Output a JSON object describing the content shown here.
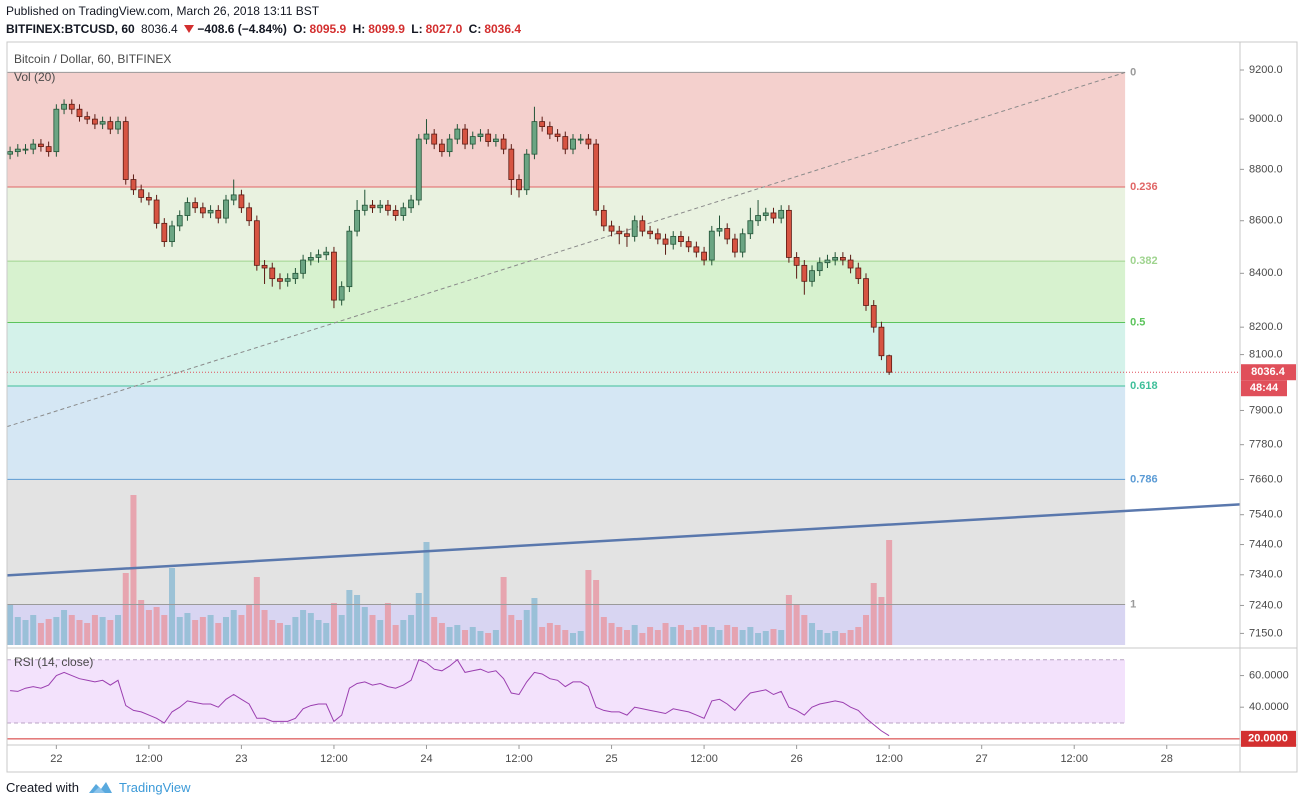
{
  "header": {
    "published": "Published on TradingView.com, March 26, 2018 13:11 BST",
    "symbol": "BITFINEX:BTCUSD, 60",
    "last": "8036.4",
    "change": "−408.6 (−4.84%)",
    "ohlc": [
      {
        "label": "O:",
        "value": "8095.9"
      },
      {
        "label": "H:",
        "value": "8099.9"
      },
      {
        "label": "L:",
        "value": "8027.0"
      },
      {
        "label": "C:",
        "value": "8036.4"
      }
    ]
  },
  "chart_data": {
    "type": "candlestick",
    "title": "Bitcoin / Dollar, 60, BITFINEX",
    "log_scale": true,
    "ylim": [
      7113,
      9316
    ],
    "yticks": [
      {
        "value": 9200,
        "label": "9200.0"
      },
      {
        "value": 9000,
        "label": "9000.0"
      },
      {
        "value": 8800,
        "label": "8800.0"
      },
      {
        "value": 8600,
        "label": "8600.0"
      },
      {
        "value": 8400,
        "label": "8400.0"
      },
      {
        "value": 8200,
        "label": "8200.0"
      },
      {
        "value": 8100,
        "label": "8100.0"
      },
      {
        "value": 7900,
        "label": "7900.0"
      },
      {
        "value": 7780,
        "label": "7780.0"
      },
      {
        "value": 7660,
        "label": "7660.0"
      },
      {
        "value": 7540,
        "label": "7540.0"
      },
      {
        "value": 7440,
        "label": "7440.0"
      },
      {
        "value": 7340,
        "label": "7340.0"
      },
      {
        "value": 7240,
        "label": "7240.0"
      },
      {
        "value": 7150,
        "label": "7150.0"
      }
    ],
    "xlim": [
      -0.4,
      159.5
    ],
    "xticks": [
      {
        "value": 6,
        "label": "22"
      },
      {
        "value": 18,
        "label": "12:00"
      },
      {
        "value": 30,
        "label": "23"
      },
      {
        "value": 42,
        "label": "12:00"
      },
      {
        "value": 54,
        "label": "24"
      },
      {
        "value": 66,
        "label": "12:00"
      },
      {
        "value": 78,
        "label": "25"
      },
      {
        "value": 90,
        "label": "12:00"
      },
      {
        "value": 102,
        "label": "26"
      },
      {
        "value": 114,
        "label": "12:00"
      },
      {
        "value": 126,
        "label": "27"
      },
      {
        "value": 138,
        "label": "12:00"
      },
      {
        "value": 150,
        "label": "28"
      }
    ],
    "up_color": "#6ba583",
    "up_border": "#225437",
    "down_color": "#d75442",
    "down_border": "#5b1a13",
    "open": [
      8860,
      8870,
      8880,
      8880,
      8900,
      8890,
      8870,
      9040,
      9060,
      9040,
      9010,
      9000,
      8980,
      8990,
      8960,
      8990,
      8760,
      8720,
      8690,
      8680,
      8590,
      8520,
      8580,
      8620,
      8670,
      8650,
      8630,
      8640,
      8610,
      8680,
      8700,
      8650,
      8600,
      8430,
      8420,
      8380,
      8370,
      8380,
      8400,
      8450,
      8460,
      8470,
      8480,
      8300,
      8350,
      8560,
      8640,
      8660,
      8650,
      8660,
      8640,
      8620,
      8650,
      8680,
      8920,
      8940,
      8900,
      8870,
      8920,
      8960,
      8900,
      8930,
      8940,
      8910,
      8920,
      8880,
      8760,
      8720,
      8860,
      8990,
      8970,
      8940,
      8930,
      8880,
      8920,
      8920,
      8900,
      8640,
      8580,
      8560,
      8550,
      8540,
      8600,
      8560,
      8550,
      8530,
      8510,
      8540,
      8520,
      8500,
      8480,
      8450,
      8560,
      8570,
      8530,
      8480,
      8550,
      8600,
      8620,
      8630,
      8610,
      8640,
      8460,
      8430,
      8370,
      8410,
      8440,
      8450,
      8460,
      8450,
      8420,
      8380,
      8280,
      8200,
      8095.9
    ],
    "high": [
      8890,
      8900,
      8900,
      8920,
      8920,
      8910,
      9060,
      9080,
      9080,
      9060,
      9030,
      9020,
      9010,
      9010,
      9010,
      9010,
      8780,
      8740,
      8710,
      8700,
      8610,
      8600,
      8640,
      8690,
      8690,
      8670,
      8660,
      8660,
      8700,
      8760,
      8720,
      8670,
      8620,
      8450,
      8440,
      8400,
      8400,
      8420,
      8470,
      8480,
      8490,
      8500,
      8500,
      8370,
      8580,
      8680,
      8720,
      8680,
      8680,
      8680,
      8660,
      8670,
      8700,
      8940,
      9000,
      8960,
      8920,
      8940,
      8980,
      8980,
      8950,
      8960,
      8960,
      8940,
      8940,
      8900,
      8780,
      8880,
      9050,
      9010,
      8990,
      8960,
      8950,
      8940,
      8940,
      8940,
      8920,
      8660,
      8600,
      8580,
      8570,
      8620,
      8620,
      8580,
      8570,
      8550,
      8560,
      8560,
      8540,
      8520,
      8500,
      8580,
      8620,
      8590,
      8550,
      8570,
      8650,
      8680,
      8650,
      8650,
      8660,
      8660,
      8480,
      8450,
      8430,
      8460,
      8470,
      8480,
      8480,
      8470,
      8440,
      8400,
      8300,
      8220,
      8099.9
    ],
    "low": [
      8840,
      8850,
      8860,
      8860,
      8870,
      8850,
      8850,
      9020,
      9020,
      8990,
      8980,
      8960,
      8960,
      8940,
      8940,
      8740,
      8700,
      8670,
      8660,
      8570,
      8500,
      8500,
      8560,
      8600,
      8630,
      8610,
      8610,
      8590,
      8590,
      8660,
      8630,
      8580,
      8410,
      8360,
      8350,
      8340,
      8350,
      8360,
      8380,
      8430,
      8440,
      8450,
      8270,
      8280,
      8330,
      8540,
      8620,
      8630,
      8630,
      8620,
      8600,
      8600,
      8630,
      8660,
      8900,
      8880,
      8850,
      8850,
      8900,
      8880,
      8880,
      8910,
      8890,
      8890,
      8860,
      8700,
      8690,
      8700,
      8840,
      8950,
      8920,
      8910,
      8860,
      8860,
      8900,
      8880,
      8620,
      8560,
      8540,
      8510,
      8500,
      8520,
      8540,
      8530,
      8510,
      8470,
      8490,
      8500,
      8480,
      8460,
      8430,
      8430,
      8540,
      8510,
      8460,
      8460,
      8530,
      8580,
      8600,
      8590,
      8590,
      8440,
      8380,
      8320,
      8350,
      8390,
      8420,
      8430,
      8430,
      8400,
      8360,
      8260,
      8180,
      8080,
      8027
    ],
    "close": [
      8870,
      8880,
      8880,
      8900,
      8890,
      8870,
      9040,
      9060,
      9040,
      9010,
      9000,
      8980,
      8990,
      8960,
      8990,
      8760,
      8720,
      8690,
      8680,
      8590,
      8520,
      8580,
      8620,
      8670,
      8650,
      8630,
      8640,
      8610,
      8680,
      8700,
      8650,
      8600,
      8430,
      8420,
      8380,
      8370,
      8380,
      8400,
      8450,
      8460,
      8470,
      8480,
      8300,
      8350,
      8560,
      8640,
      8660,
      8650,
      8660,
      8640,
      8620,
      8650,
      8680,
      8920,
      8940,
      8900,
      8870,
      8920,
      8960,
      8900,
      8930,
      8940,
      8910,
      8920,
      8880,
      8760,
      8720,
      8860,
      8990,
      8970,
      8940,
      8930,
      8880,
      8920,
      8920,
      8900,
      8640,
      8580,
      8560,
      8550,
      8540,
      8600,
      8560,
      8550,
      8530,
      8510,
      8540,
      8520,
      8500,
      8480,
      8450,
      8560,
      8570,
      8530,
      8480,
      8550,
      8600,
      8620,
      8630,
      8610,
      8640,
      8460,
      8430,
      8370,
      8410,
      8440,
      8450,
      8460,
      8450,
      8420,
      8380,
      8280,
      8200,
      8095.9,
      8036.4
    ],
    "volume": {
      "name": "Vol (20)",
      "ylim": [
        0,
        200
      ],
      "up_color": "#8fbcd4",
      "down_color": "#e89aa6",
      "values": [
        40,
        28,
        25,
        30,
        22,
        26,
        28,
        35,
        30,
        25,
        22,
        30,
        28,
        25,
        30,
        72,
        150,
        45,
        35,
        38,
        30,
        77,
        28,
        32,
        25,
        28,
        30,
        22,
        28,
        35,
        30,
        40,
        68,
        35,
        25,
        22,
        20,
        28,
        35,
        32,
        25,
        22,
        42,
        30,
        55,
        50,
        38,
        30,
        25,
        42,
        20,
        25,
        30,
        52,
        103,
        28,
        22,
        18,
        20,
        15,
        18,
        14,
        12,
        15,
        68,
        30,
        25,
        35,
        47,
        18,
        22,
        20,
        15,
        12,
        14,
        75,
        65,
        28,
        22,
        18,
        15,
        20,
        12,
        18,
        15,
        22,
        18,
        20,
        15,
        18,
        20,
        18,
        15,
        20,
        18,
        15,
        18,
        12,
        14,
        16,
        15,
        50,
        40,
        30,
        22,
        15,
        12,
        14,
        12,
        15,
        18,
        30,
        62,
        48,
        105
      ]
    },
    "fibonacci": {
      "x": [
        -0.4,
        144.6
      ],
      "levels": [
        {
          "ratio": 0,
          "price": 9190,
          "color": "#9a9a9a",
          "fill": "#f4d0cd"
        },
        {
          "ratio": 0.236,
          "price": 8731,
          "color": "#e06666",
          "fill": "#e9f2e0"
        },
        {
          "ratio": 0.382,
          "price": 8446,
          "color": "#9fd48f",
          "fill": "#d7f2cf"
        },
        {
          "ratio": 0.5,
          "price": 8217,
          "color": "#5cc45c",
          "fill": "#d4f2ea"
        },
        {
          "ratio": 0.618,
          "price": 7987,
          "color": "#3fbf9a",
          "fill": "#d5e7f4"
        },
        {
          "ratio": 0.786,
          "price": 7660,
          "color": "#5b9bd5",
          "fill": "#e3e3e3"
        },
        {
          "ratio": 1,
          "price": 7243,
          "color": "#9a9a9a",
          "fill": "#d8d5f2"
        }
      ]
    },
    "trend_lines": [
      {
        "x": [
          -0.4,
          144.6
        ],
        "y": [
          7843,
          9190
        ],
        "color": "#8a8a8a",
        "dashed": true
      },
      {
        "x": [
          -0.4,
          159.5
        ],
        "y": [
          7338,
          7575
        ],
        "color": "#5a78ad",
        "dashed": false
      }
    ],
    "last_price": {
      "value": 8036.4,
      "countdown": "48:44",
      "color": "#e04f5a"
    },
    "rsi": {
      "name": "RSI (14, close)",
      "ylim": [
        18,
        73
      ],
      "color": "#9b3fb0",
      "band": [
        30,
        70
      ],
      "band_color": "#f3e2fc",
      "yticks": [
        {
          "value": 60,
          "label": "60.0000"
        },
        {
          "value": 40,
          "label": "40.0000"
        }
      ],
      "level": {
        "value": 20,
        "label": "20.0000",
        "color": "#d32f2f"
      },
      "values": [
        50.5,
        50,
        52,
        53,
        52,
        54,
        60,
        62,
        60,
        58,
        57,
        56,
        57,
        54,
        57,
        41,
        38,
        37,
        35,
        33,
        30,
        37,
        40,
        44,
        43,
        42,
        42,
        40,
        45,
        48,
        45,
        42,
        33,
        33,
        31,
        31,
        31,
        33,
        39,
        41,
        42,
        42,
        31,
        35,
        52,
        55,
        56,
        54,
        55,
        53,
        52,
        54,
        57,
        70,
        68,
        64,
        63,
        66,
        70,
        62,
        63,
        64,
        62,
        63,
        58,
        49,
        48,
        56,
        62,
        61,
        58,
        57,
        53,
        56,
        56,
        53,
        40,
        38,
        37,
        37,
        35,
        40,
        39,
        38,
        37,
        36,
        39,
        38,
        37,
        35,
        33,
        44,
        45,
        42,
        38,
        44,
        49,
        50,
        51,
        48,
        50,
        40,
        38,
        35,
        40,
        42,
        43,
        44,
        43,
        40,
        38,
        33,
        29,
        25,
        22
      ]
    }
  },
  "footer": {
    "created_with": "Created with",
    "brand": "TradingView"
  }
}
